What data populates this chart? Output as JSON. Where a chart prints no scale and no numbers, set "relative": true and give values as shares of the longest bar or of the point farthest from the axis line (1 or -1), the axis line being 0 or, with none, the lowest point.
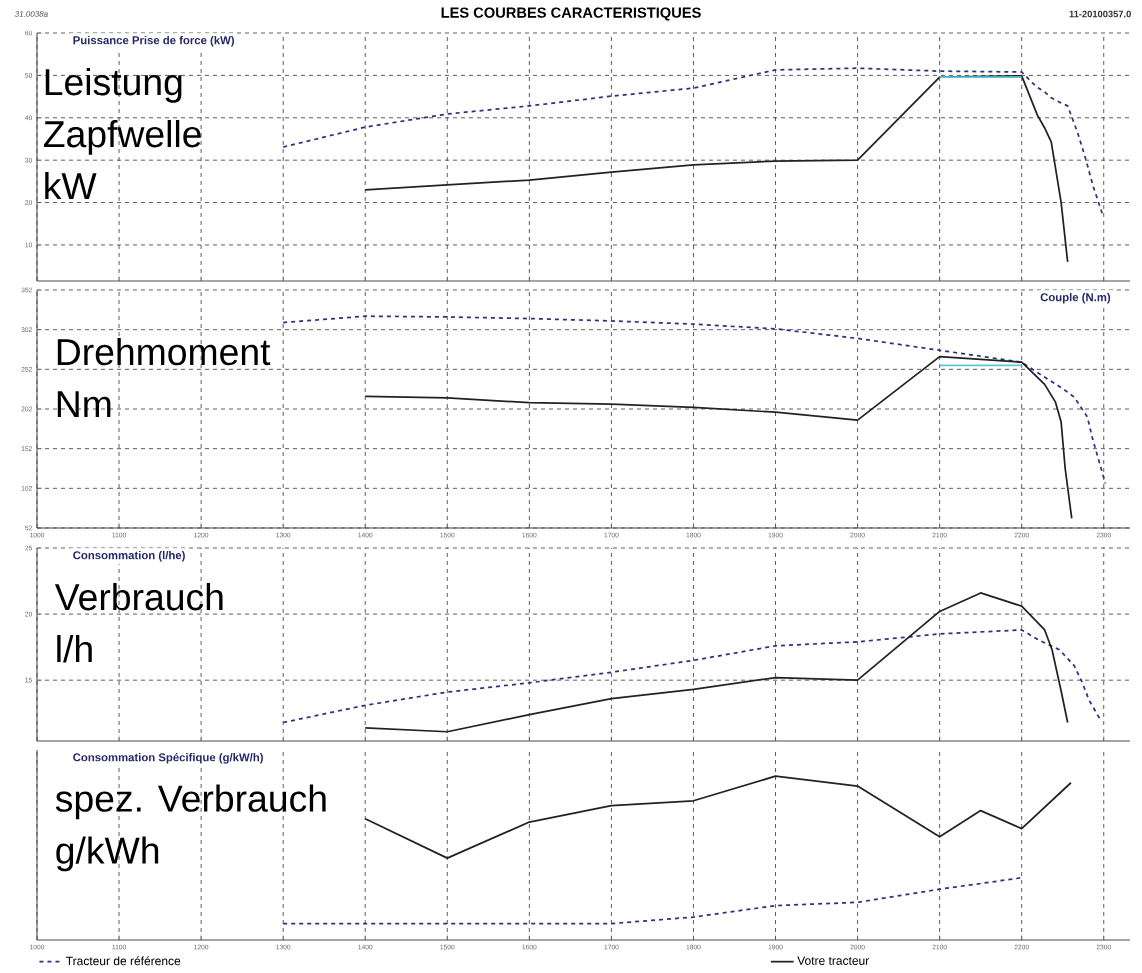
{
  "chart_data": [
    {
      "type": "line",
      "title": "LES COURBES CARACTERISTIQUES",
      "subtitle": "Puissance Prise de force (kW)",
      "annotations": [
        "31.0038a",
        "11-20100357.0",
        "Leistung",
        "Zapfwelle",
        "kW"
      ],
      "xlim": [
        1000,
        2332
      ],
      "xticks": [
        1000,
        1100,
        1200,
        1300,
        1400,
        1500,
        1600,
        1700,
        1800,
        1900,
        2000,
        2100,
        2200,
        2300
      ],
      "ylim": [
        1.5,
        60
      ],
      "yticks": [
        10,
        20,
        30,
        40,
        50,
        60
      ],
      "grid": true,
      "tick_labels": "y",
      "series": [
        {
          "color": "#2e3080",
          "line_style": "dashed",
          "x": [
            1300,
            1400,
            1500,
            1600,
            1700,
            1800,
            1900,
            2000,
            2100,
            2200,
            2218,
            2228,
            2236,
            2246,
            2256,
            2268,
            2278,
            2287,
            2298
          ],
          "values": [
            33.1,
            37.8,
            40.9,
            42.8,
            45.1,
            47.0,
            51.3,
            51.7,
            51.0,
            50.8,
            47.3,
            46.1,
            44.7,
            43.7,
            42.8,
            36.6,
            30.3,
            23.9,
            17.5
          ]
        },
        {
          "color": "#222222",
          "line_style": "solid",
          "x": [
            1400,
            1500,
            1600,
            1700,
            1800,
            1900,
            2000,
            2100,
            2200,
            2219,
            2228,
            2236,
            2248,
            2256
          ],
          "values": [
            23.0,
            24.2,
            25.3,
            27.2,
            28.9,
            29.8,
            30.0,
            49.6,
            49.9,
            40.7,
            37.6,
            34.3,
            20.1,
            6.0
          ]
        },
        {
          "color": "#5cc8d8",
          "line_style": "solid",
          "x": [
            2100,
            2200
          ],
          "values": [
            49.6,
            49.6
          ]
        }
      ]
    },
    {
      "type": "line",
      "subtitle": "Couple (N.m)",
      "annotations": [
        "Drehmoment",
        "Nm"
      ],
      "xlim": [
        1000,
        2332
      ],
      "xticks": [
        1000,
        1100,
        1200,
        1300,
        1400,
        1500,
        1600,
        1700,
        1800,
        1900,
        2000,
        2100,
        2200,
        2300
      ],
      "ylim": [
        52,
        352
      ],
      "yticks": [
        52,
        102,
        152,
        202,
        252,
        302,
        352
      ],
      "grid": true,
      "series": [
        {
          "color": "#2e3080",
          "line_style": "dashed",
          "x": [
            1300,
            1400,
            1500,
            1600,
            1700,
            1800,
            1900,
            2000,
            2100,
            2200,
            2222,
            2236,
            2251,
            2264,
            2280,
            2286,
            2294,
            2302
          ],
          "values": [
            311,
            319,
            318,
            316,
            313,
            309,
            303,
            291,
            276,
            261,
            246,
            237,
            227,
            217,
            192,
            166,
            137,
            108
          ]
        },
        {
          "color": "#222222",
          "line_style": "solid",
          "x": [
            1400,
            1500,
            1600,
            1700,
            1800,
            1900,
            2000,
            2100,
            2200,
            2228,
            2241,
            2248,
            2253,
            2261
          ],
          "values": [
            218,
            216,
            210,
            208,
            204,
            198,
            188,
            268,
            261,
            233,
            211,
            186,
            127,
            64
          ]
        },
        {
          "color": "#5cc8d8",
          "line_style": "solid",
          "x": [
            2100,
            2200
          ],
          "values": [
            257,
            257
          ]
        }
      ]
    },
    {
      "type": "line",
      "subtitle": "Consommation (l/he)",
      "annotations": [
        "Verbrauch",
        "l/h"
      ],
      "xlim": [
        1000,
        2332
      ],
      "xticks": [
        1000,
        1100,
        1200,
        1300,
        1400,
        1500,
        1600,
        1700,
        1800,
        1900,
        2000,
        2100,
        2200,
        2300
      ],
      "ylim": [
        10.4,
        25
      ],
      "yticks": [
        15,
        20,
        25
      ],
      "grid": true,
      "tick_labels": "y",
      "series": [
        {
          "color": "#2e3080",
          "line_style": "dashed",
          "x": [
            1300,
            1400,
            1500,
            1600,
            1700,
            1800,
            1900,
            2000,
            2100,
            2200,
            2222,
            2246,
            2264,
            2274,
            2282,
            2295
          ],
          "values": [
            11.8,
            13.1,
            14.1,
            14.8,
            15.6,
            16.5,
            17.6,
            17.9,
            18.5,
            18.8,
            18.0,
            17.3,
            16.1,
            14.8,
            13.5,
            12.1
          ]
        },
        {
          "color": "#222222",
          "line_style": "solid",
          "x": [
            1400,
            1500,
            1600,
            1700,
            1800,
            1900,
            2000,
            2100,
            2150,
            2200,
            2228,
            2237,
            2248,
            2256
          ],
          "values": [
            11.4,
            11.1,
            12.4,
            13.6,
            14.3,
            15.2,
            15.0,
            20.2,
            21.6,
            20.6,
            18.8,
            17.3,
            14.2,
            11.8
          ]
        }
      ]
    },
    {
      "type": "line",
      "subtitle": "Consommation Spécifique (g/kW/h)",
      "annotations": [
        "spez. Verbrauch",
        "g/kWh"
      ],
      "xlim": [
        1000,
        2332
      ],
      "xticks": [
        1000,
        1100,
        1200,
        1300,
        1400,
        1500,
        1600,
        1700,
        1800,
        1900,
        2000,
        2100,
        2200,
        2300
      ],
      "relative": true,
      "grid": "x",
      "tick_labels": "x",
      "legend": "bottom",
      "series": [
        {
          "name": "Tracteur de référence",
          "color": "#2e3080",
          "line_style": "dashed",
          "x": [
            1300,
            1400,
            1500,
            1600,
            1700,
            1800,
            1900,
            2000,
            2100,
            2200
          ],
          "values": [
            0.1,
            0.1,
            0.1,
            0.1,
            0.1,
            0.14,
            0.21,
            0.23,
            0.31,
            0.38
          ]
        },
        {
          "name": "Votre tracteur",
          "color": "#222222",
          "line_style": "solid",
          "x": [
            1400,
            1500,
            1600,
            1700,
            1800,
            1900,
            2000,
            2100,
            2150,
            2200,
            2260
          ],
          "values": [
            0.74,
            0.5,
            0.72,
            0.82,
            0.85,
            1.0,
            0.94,
            0.63,
            0.79,
            0.68,
            0.96
          ]
        }
      ]
    }
  ]
}
